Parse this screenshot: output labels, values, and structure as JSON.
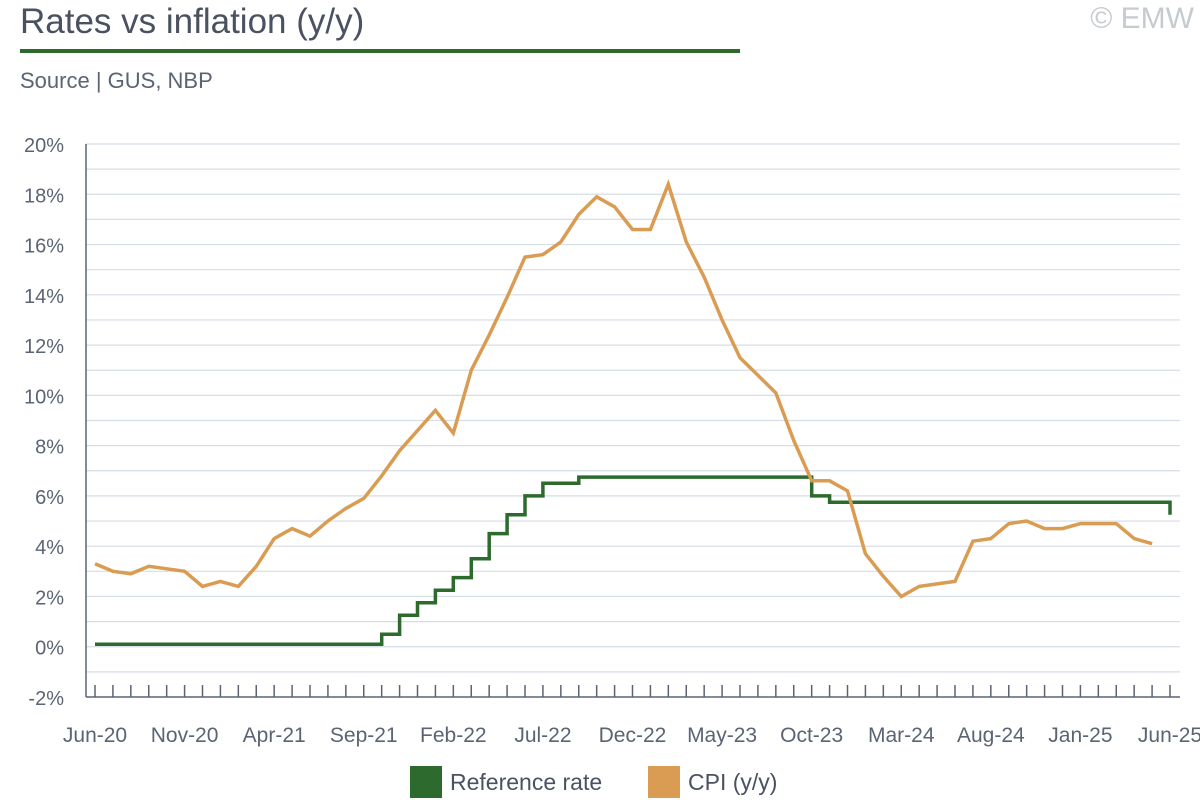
{
  "header": {
    "title": "Rates vs inflation (y/y)",
    "copyright": "© EMW",
    "source": "Source | GUS, NBP"
  },
  "colors": {
    "reference_rate": "#2d6a2d",
    "cpi": "#d99c52",
    "grid": "#d5dde6",
    "axis": "#5b6473",
    "title_rule": "#2d6a2d"
  },
  "chart_data": {
    "type": "line",
    "title": "Rates vs inflation (y/y)",
    "ylim": [
      -2,
      20
    ],
    "yticks": [
      "-2%",
      "0%",
      "2%",
      "4%",
      "6%",
      "8%",
      "10%",
      "12%",
      "14%",
      "16%",
      "18%",
      "20%"
    ],
    "x_tick_labels": [
      "Jun-20",
      "Nov-20",
      "Apr-21",
      "Sep-21",
      "Feb-22",
      "Jul-22",
      "Dec-22",
      "May-23",
      "Oct-23",
      "Mar-24",
      "Aug-24",
      "Jan-25",
      "Jun-25"
    ],
    "x": [
      "Jun-20",
      "Jul-20",
      "Aug-20",
      "Sep-20",
      "Oct-20",
      "Nov-20",
      "Dec-20",
      "Jan-21",
      "Feb-21",
      "Mar-21",
      "Apr-21",
      "May-21",
      "Jun-21",
      "Jul-21",
      "Aug-21",
      "Sep-21",
      "Oct-21",
      "Nov-21",
      "Dec-21",
      "Jan-22",
      "Feb-22",
      "Mar-22",
      "Apr-22",
      "May-22",
      "Jun-22",
      "Jul-22",
      "Aug-22",
      "Sep-22",
      "Oct-22",
      "Nov-22",
      "Dec-22",
      "Jan-23",
      "Feb-23",
      "Mar-23",
      "Apr-23",
      "May-23",
      "Jun-23",
      "Jul-23",
      "Aug-23",
      "Sep-23",
      "Oct-23",
      "Nov-23",
      "Dec-23",
      "Jan-24",
      "Feb-24",
      "Mar-24",
      "Apr-24",
      "May-24",
      "Jun-24",
      "Jul-24",
      "Aug-24",
      "Sep-24",
      "Oct-24",
      "Nov-24",
      "Dec-24",
      "Jan-25",
      "Feb-25",
      "Mar-25",
      "Apr-25",
      "May-25",
      "Jun-25"
    ],
    "series": [
      {
        "name": "Reference rate",
        "step": true,
        "values": [
          0.1,
          0.1,
          0.1,
          0.1,
          0.1,
          0.1,
          0.1,
          0.1,
          0.1,
          0.1,
          0.1,
          0.1,
          0.1,
          0.1,
          0.1,
          0.1,
          0.5,
          1.25,
          1.75,
          2.25,
          2.75,
          3.5,
          4.5,
          5.25,
          6.0,
          6.5,
          6.5,
          6.75,
          6.75,
          6.75,
          6.75,
          6.75,
          6.75,
          6.75,
          6.75,
          6.75,
          6.75,
          6.75,
          6.75,
          6.75,
          6.0,
          5.75,
          5.75,
          5.75,
          5.75,
          5.75,
          5.75,
          5.75,
          5.75,
          5.75,
          5.75,
          5.75,
          5.75,
          5.75,
          5.75,
          5.75,
          5.75,
          5.75,
          5.75,
          5.75,
          5.25
        ]
      },
      {
        "name": "CPI (y/y)",
        "step": false,
        "values": [
          3.3,
          3.0,
          2.9,
          3.2,
          3.1,
          3.0,
          2.4,
          2.6,
          2.4,
          3.2,
          4.3,
          4.7,
          4.4,
          5.0,
          5.5,
          5.9,
          6.8,
          7.8,
          8.6,
          9.4,
          8.5,
          11.0,
          12.4,
          13.9,
          15.5,
          15.6,
          16.1,
          17.2,
          17.9,
          17.5,
          16.6,
          16.6,
          18.4,
          16.1,
          14.7,
          13.0,
          11.5,
          10.8,
          10.1,
          8.2,
          6.6,
          6.6,
          6.2,
          3.7,
          2.8,
          2.0,
          2.4,
          2.5,
          2.6,
          4.2,
          4.3,
          4.9,
          5.0,
          4.7,
          4.7,
          4.9,
          4.9,
          4.9,
          4.3,
          4.1,
          null
        ]
      }
    ],
    "legend": {
      "position": "bottom-center"
    }
  }
}
